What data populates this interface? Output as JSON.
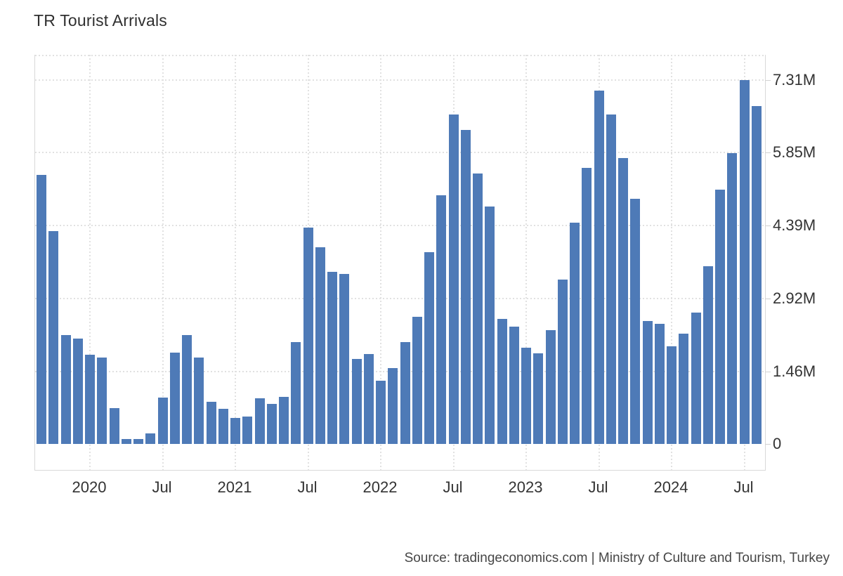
{
  "header": {
    "title": "TR Tourist Arrivals"
  },
  "footer": {
    "source": "Source: tradingeconomics.com | Ministry of Culture and Tourism, Turkey"
  },
  "colors": {
    "bar": "#4e7ab7",
    "grid": "#e1e1e1",
    "frame": "#d9d9d9",
    "tick": "#d2d2d2",
    "axis_text": "#333333",
    "title_text": "#2f2f2f",
    "source_text": "#464646",
    "background": "#ffffff"
  },
  "chart_data": {
    "type": "bar",
    "title": "TR Tourist Arrivals",
    "xlabel": "",
    "ylabel": "",
    "unit": "millions of arrivals per month",
    "ylim": [
      0,
      7.31
    ],
    "grid": true,
    "legend": "none",
    "bar_color": "#4e7ab7",
    "x": [
      "2019-09",
      "2019-10",
      "2019-11",
      "2019-12",
      "2020-01",
      "2020-02",
      "2020-03",
      "2020-04",
      "2020-05",
      "2020-06",
      "2020-07",
      "2020-08",
      "2020-09",
      "2020-10",
      "2020-11",
      "2020-12",
      "2021-01",
      "2021-02",
      "2021-03",
      "2021-04",
      "2021-05",
      "2021-06",
      "2021-07",
      "2021-08",
      "2021-09",
      "2021-10",
      "2021-11",
      "2021-12",
      "2022-01",
      "2022-02",
      "2022-03",
      "2022-04",
      "2022-05",
      "2022-06",
      "2022-07",
      "2022-08",
      "2022-09",
      "2022-10",
      "2022-11",
      "2022-12",
      "2023-01",
      "2023-02",
      "2023-03",
      "2023-04",
      "2023-05",
      "2023-06",
      "2023-07",
      "2023-08",
      "2023-09",
      "2023-10",
      "2023-11",
      "2023-12",
      "2024-01",
      "2024-02",
      "2024-03",
      "2024-04",
      "2024-05",
      "2024-06",
      "2024-07",
      "2024-08"
    ],
    "values": [
      5.4,
      4.27,
      2.19,
      2.11,
      1.79,
      1.73,
      0.72,
      0.1,
      0.1,
      0.21,
      0.93,
      1.83,
      2.19,
      1.74,
      0.84,
      0.7,
      0.52,
      0.55,
      0.91,
      0.8,
      0.94,
      2.04,
      4.34,
      3.95,
      3.45,
      3.42,
      1.7,
      1.81,
      1.27,
      1.53,
      2.05,
      2.55,
      3.85,
      5.0,
      6.62,
      6.3,
      5.43,
      4.77,
      2.51,
      2.35,
      1.93,
      1.82,
      2.28,
      3.3,
      4.44,
      5.55,
      7.1,
      6.62,
      5.74,
      4.93,
      2.47,
      2.41,
      1.96,
      2.21,
      2.64,
      3.57,
      5.1,
      5.84,
      7.31,
      6.79
    ],
    "y_ticks": [
      {
        "v": 0,
        "label": "0"
      },
      {
        "v": 1.46,
        "label": "1.46M"
      },
      {
        "v": 2.92,
        "label": "2.92M"
      },
      {
        "v": 4.39,
        "label": "4.39M"
      },
      {
        "v": 5.85,
        "label": "5.85M"
      },
      {
        "v": 7.31,
        "label": "7.31M"
      }
    ],
    "x_ticks": [
      {
        "month": "2020-01",
        "label": "2020"
      },
      {
        "month": "2020-07",
        "label": "Jul"
      },
      {
        "month": "2021-01",
        "label": "2021"
      },
      {
        "month": "2021-07",
        "label": "Jul"
      },
      {
        "month": "2022-01",
        "label": "2022"
      },
      {
        "month": "2022-07",
        "label": "Jul"
      },
      {
        "month": "2023-01",
        "label": "2023"
      },
      {
        "month": "2023-07",
        "label": "Jul"
      },
      {
        "month": "2024-01",
        "label": "2024"
      },
      {
        "month": "2024-07",
        "label": "Jul"
      }
    ]
  }
}
